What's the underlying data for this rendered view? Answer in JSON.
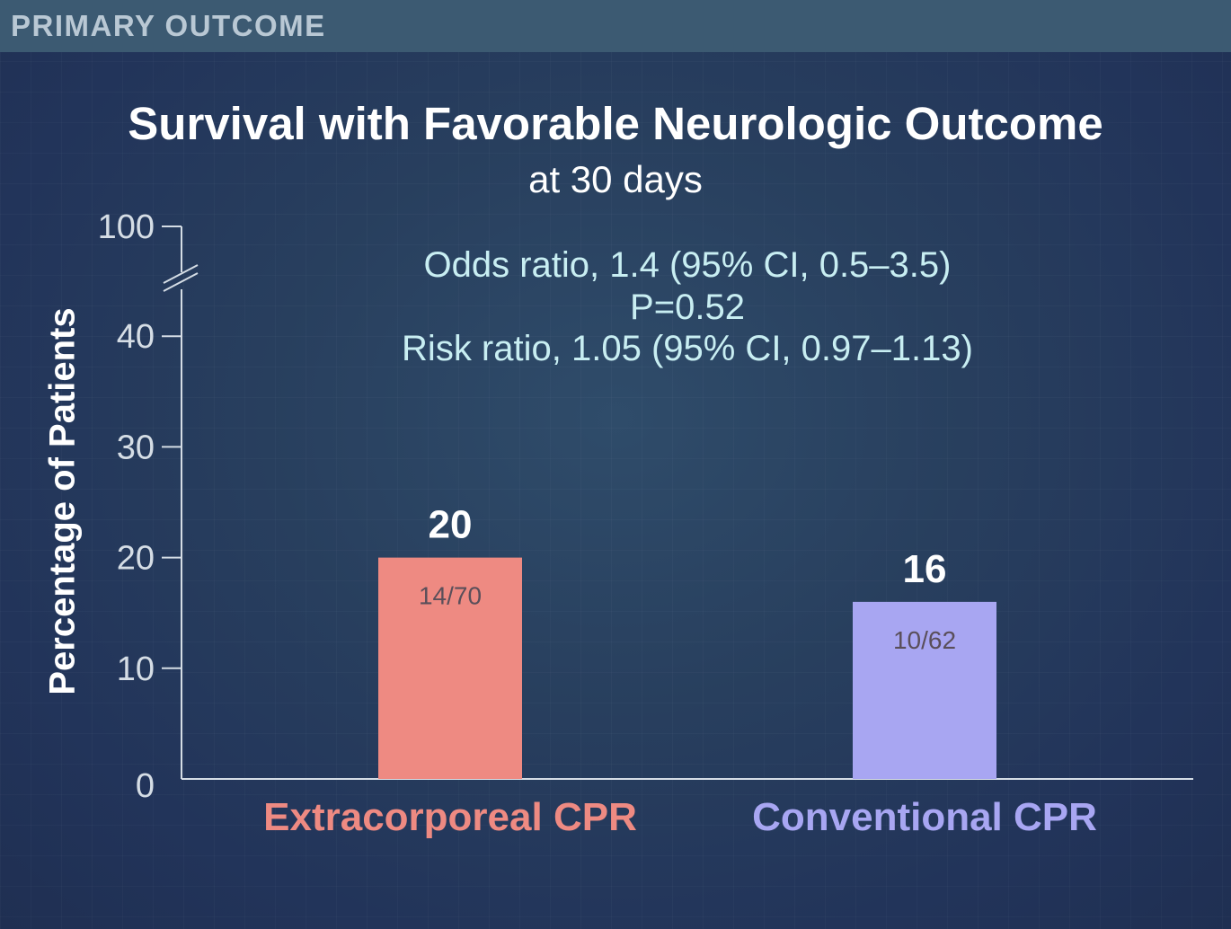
{
  "header": {
    "label": "PRIMARY OUTCOME"
  },
  "colors": {
    "extracorporeal": "#ee8a82",
    "conventional": "#a8a6f2",
    "axis": "#d5dde5"
  },
  "annotations": {
    "odds_ratio": "Odds ratio, 1.4 (95% CI, 0.5–3.5)",
    "p_value": "P=0.52",
    "risk_ratio": "Risk ratio, 1.05 (95% CI, 0.97–1.13)"
  },
  "chart_data": {
    "type": "bar",
    "title": "Survival with Favorable Neurologic Outcome",
    "subtitle": "at 30 days",
    "ylabel": "Percentage of Patients",
    "xlabel": "",
    "ylim": [
      0,
      100
    ],
    "axis_break": [
      40,
      100
    ],
    "yticks": [
      0,
      10,
      20,
      30,
      40,
      100
    ],
    "categories": [
      "Extracorporeal CPR",
      "Conventional CPR"
    ],
    "values": [
      20,
      16
    ],
    "value_labels": [
      "20",
      "16"
    ],
    "counts": [
      "14/70",
      "10/62"
    ]
  }
}
